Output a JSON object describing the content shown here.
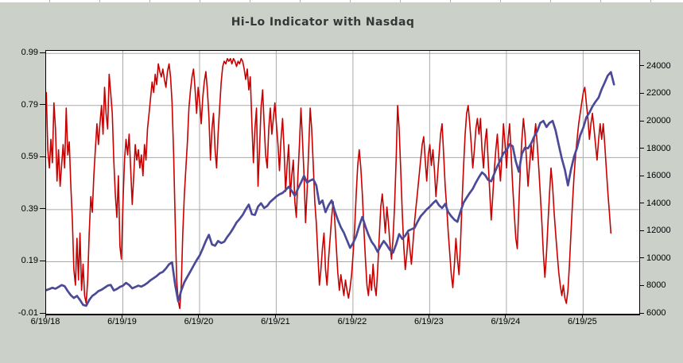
{
  "title": "Hi-Lo Indicator with Nasdaq",
  "colors": {
    "page_background": "#CBD1C9",
    "plot_background": "#FFFFFF",
    "plot_border": "#000000",
    "grid": "#AAAAAA",
    "hilo_line": "#C80000",
    "nasdaq_line": "#4A4A99",
    "title_text": "#373737"
  },
  "chart_data": {
    "type": "line",
    "title": "Hi-Lo Indicator with Nasdaq",
    "xlabel": "",
    "grid": true,
    "legend": "none",
    "x_domain_years": [
      2018.468,
      2026.2
    ],
    "x_axis": {
      "ticks": [
        {
          "label": "6/19/18",
          "year": 2018.468
        },
        {
          "label": "6/19/19",
          "year": 2019.468
        },
        {
          "label": "6/19/20",
          "year": 2020.468
        },
        {
          "label": "6/19/21",
          "year": 2021.468
        },
        {
          "label": "6/19/22",
          "year": 2022.468
        },
        {
          "label": "6/19/23",
          "year": 2023.468
        },
        {
          "label": "6/19/24",
          "year": 2024.468
        },
        {
          "label": "6/19/25",
          "year": 2025.468
        }
      ]
    },
    "left_axis": {
      "series": "Hi-Lo Indicator",
      "range": [
        -0.01,
        1.0
      ],
      "ticks": [
        {
          "label": "0.99",
          "value": 0.99
        },
        {
          "label": "0.79",
          "value": 0.79
        },
        {
          "label": "0.59",
          "value": 0.59
        },
        {
          "label": "0.39",
          "value": 0.39
        },
        {
          "label": "0.19",
          "value": 0.19
        },
        {
          "label": "-0.01",
          "value": -0.01
        }
      ]
    },
    "right_axis": {
      "series": "Nasdaq",
      "range": [
        6000,
        25150
      ],
      "ticks": [
        {
          "label": "24000",
          "value": 24000
        },
        {
          "label": "22000",
          "value": 22000
        },
        {
          "label": "20000",
          "value": 20000
        },
        {
          "label": "18000",
          "value": 18000
        },
        {
          "label": "16000",
          "value": 16000
        },
        {
          "label": "14000",
          "value": 14000
        },
        {
          "label": "12000",
          "value": 12000
        },
        {
          "label": "10000",
          "value": 10000
        },
        {
          "label": "8000",
          "value": 8000
        },
        {
          "label": "6000",
          "value": 6000
        }
      ]
    },
    "series": [
      {
        "name": "Hi-Lo Indicator",
        "axis": "left",
        "color": "#C80000",
        "width": 1.6,
        "x_start": 2018.47,
        "x_step": 0.02,
        "values": [
          0.84,
          0.62,
          0.55,
          0.66,
          0.57,
          0.8,
          0.7,
          0.5,
          0.62,
          0.48,
          0.56,
          0.64,
          0.55,
          0.78,
          0.6,
          0.65,
          0.48,
          0.35,
          0.16,
          0.1,
          0.28,
          0.12,
          0.3,
          0.08,
          0.18,
          0.06,
          0.03,
          0.12,
          0.3,
          0.44,
          0.38,
          0.52,
          0.62,
          0.72,
          0.64,
          0.72,
          0.79,
          0.68,
          0.86,
          0.76,
          0.7,
          0.91,
          0.84,
          0.76,
          0.58,
          0.45,
          0.36,
          0.52,
          0.25,
          0.2,
          0.42,
          0.58,
          0.66,
          0.6,
          0.68,
          0.55,
          0.41,
          0.52,
          0.64,
          0.58,
          0.62,
          0.55,
          0.6,
          0.52,
          0.64,
          0.58,
          0.7,
          0.76,
          0.82,
          0.88,
          0.84,
          0.91,
          0.87,
          0.95,
          0.92,
          0.9,
          0.93,
          0.89,
          0.86,
          0.92,
          0.95,
          0.9,
          0.8,
          0.6,
          0.35,
          0.12,
          0.04,
          0.01,
          0.1,
          0.3,
          0.45,
          0.55,
          0.65,
          0.78,
          0.85,
          0.9,
          0.93,
          0.85,
          0.76,
          0.86,
          0.8,
          0.72,
          0.82,
          0.88,
          0.92,
          0.85,
          0.75,
          0.58,
          0.7,
          0.76,
          0.62,
          0.55,
          0.68,
          0.78,
          0.88,
          0.94,
          0.96,
          0.95,
          0.97,
          0.96,
          0.97,
          0.95,
          0.97,
          0.96,
          0.94,
          0.96,
          0.95,
          0.97,
          0.96,
          0.93,
          0.89,
          0.93,
          0.85,
          0.9,
          0.72,
          0.57,
          0.7,
          0.78,
          0.48,
          0.62,
          0.78,
          0.85,
          0.72,
          0.6,
          0.55,
          0.7,
          0.78,
          0.68,
          0.74,
          0.8,
          0.72,
          0.64,
          0.54,
          0.66,
          0.74,
          0.62,
          0.46,
          0.56,
          0.64,
          0.44,
          0.52,
          0.58,
          0.42,
          0.36,
          0.52,
          0.64,
          0.78,
          0.66,
          0.52,
          0.34,
          0.46,
          0.62,
          0.78,
          0.7,
          0.56,
          0.42,
          0.34,
          0.22,
          0.1,
          0.16,
          0.24,
          0.3,
          0.16,
          0.1,
          0.2,
          0.28,
          0.36,
          0.42,
          0.35,
          0.25,
          0.15,
          0.08,
          0.14,
          0.1,
          0.06,
          0.12,
          0.08,
          0.05,
          0.09,
          0.14,
          0.22,
          0.32,
          0.45,
          0.56,
          0.62,
          0.55,
          0.45,
          0.32,
          0.2,
          0.1,
          0.06,
          0.14,
          0.08,
          0.18,
          0.1,
          0.06,
          0.16,
          0.28,
          0.4,
          0.45,
          0.38,
          0.3,
          0.4,
          0.34,
          0.26,
          0.2,
          0.28,
          0.4,
          0.58,
          0.79,
          0.7,
          0.55,
          0.38,
          0.25,
          0.16,
          0.22,
          0.3,
          0.24,
          0.18,
          0.26,
          0.34,
          0.4,
          0.46,
          0.52,
          0.58,
          0.64,
          0.67,
          0.58,
          0.5,
          0.6,
          0.64,
          0.56,
          0.62,
          0.54,
          0.44,
          0.52,
          0.6,
          0.68,
          0.72,
          0.6,
          0.48,
          0.4,
          0.3,
          0.22,
          0.14,
          0.09,
          0.18,
          0.28,
          0.2,
          0.14,
          0.26,
          0.42,
          0.56,
          0.68,
          0.76,
          0.79,
          0.72,
          0.64,
          0.55,
          0.62,
          0.7,
          0.74,
          0.68,
          0.74,
          0.62,
          0.55,
          0.65,
          0.7,
          0.58,
          0.46,
          0.35,
          0.44,
          0.54,
          0.62,
          0.68,
          0.58,
          0.5,
          0.6,
          0.72,
          0.64,
          0.55,
          0.66,
          0.72,
          0.6,
          0.48,
          0.38,
          0.28,
          0.24,
          0.4,
          0.56,
          0.66,
          0.74,
          0.68,
          0.58,
          0.48,
          0.56,
          0.64,
          0.58,
          0.66,
          0.72,
          0.64,
          0.55,
          0.45,
          0.34,
          0.22,
          0.13,
          0.22,
          0.34,
          0.45,
          0.55,
          0.48,
          0.38,
          0.3,
          0.22,
          0.15,
          0.1,
          0.06,
          0.1,
          0.05,
          0.03,
          0.08,
          0.18,
          0.3,
          0.42,
          0.52,
          0.6,
          0.66,
          0.72,
          0.76,
          0.8,
          0.84,
          0.86,
          0.8,
          0.74,
          0.66,
          0.72,
          0.76,
          0.7,
          0.64,
          0.58,
          0.66,
          0.72,
          0.66,
          0.72,
          0.64,
          0.55,
          0.46,
          0.38,
          0.3
        ]
      },
      {
        "name": "Nasdaq",
        "axis": "right",
        "color": "#4A4A99",
        "width": 2.7,
        "x_start": 2018.47,
        "x_step": 0.04,
        "values": [
          7720,
          7800,
          7890,
          7820,
          7950,
          8090,
          8010,
          7650,
          7350,
          7150,
          7300,
          7000,
          6650,
          6580,
          7000,
          7300,
          7450,
          7650,
          7750,
          7900,
          8050,
          8100,
          7700,
          7800,
          7950,
          8050,
          8250,
          8100,
          7850,
          7950,
          8050,
          7980,
          8100,
          8250,
          8450,
          8600,
          8750,
          8950,
          9050,
          9300,
          9600,
          9750,
          8100,
          6900,
          7700,
          8300,
          8700,
          9100,
          9500,
          9900,
          10250,
          10750,
          11300,
          11750,
          11050,
          10950,
          11300,
          11150,
          11250,
          11600,
          11900,
          12250,
          12650,
          12900,
          13200,
          13600,
          13950,
          13250,
          13200,
          13800,
          14050,
          13700,
          13850,
          14150,
          14350,
          14550,
          14700,
          14800,
          15000,
          15250,
          14950,
          14600,
          15100,
          15550,
          16050,
          15550,
          15700,
          15800,
          15350,
          14000,
          14250,
          13400,
          13900,
          14250,
          13500,
          12850,
          12300,
          11900,
          11350,
          10800,
          11150,
          11650,
          12400,
          13050,
          12350,
          11750,
          11250,
          10950,
          10500,
          10950,
          11300,
          11000,
          10650,
          10450,
          11050,
          11800,
          11450,
          11700,
          12050,
          12150,
          12250,
          12700,
          13100,
          13350,
          13600,
          13800,
          14050,
          14250,
          13900,
          13700,
          14000,
          13400,
          13100,
          12850,
          12700,
          13450,
          14100,
          14450,
          14800,
          15100,
          15550,
          15950,
          16300,
          16100,
          15750,
          15650,
          16200,
          16750,
          17200,
          17700,
          17900,
          18350,
          18200,
          17100,
          16350,
          17650,
          18100,
          18050,
          18400,
          18900,
          19300,
          19900,
          20050,
          19600,
          19900,
          20050,
          19350,
          18300,
          17300,
          16500,
          15350,
          16500,
          17450,
          18100,
          19000,
          19550,
          20300,
          20650,
          21100,
          21450,
          21750,
          22350,
          22850,
          23350,
          23600,
          22700
        ]
      }
    ]
  }
}
